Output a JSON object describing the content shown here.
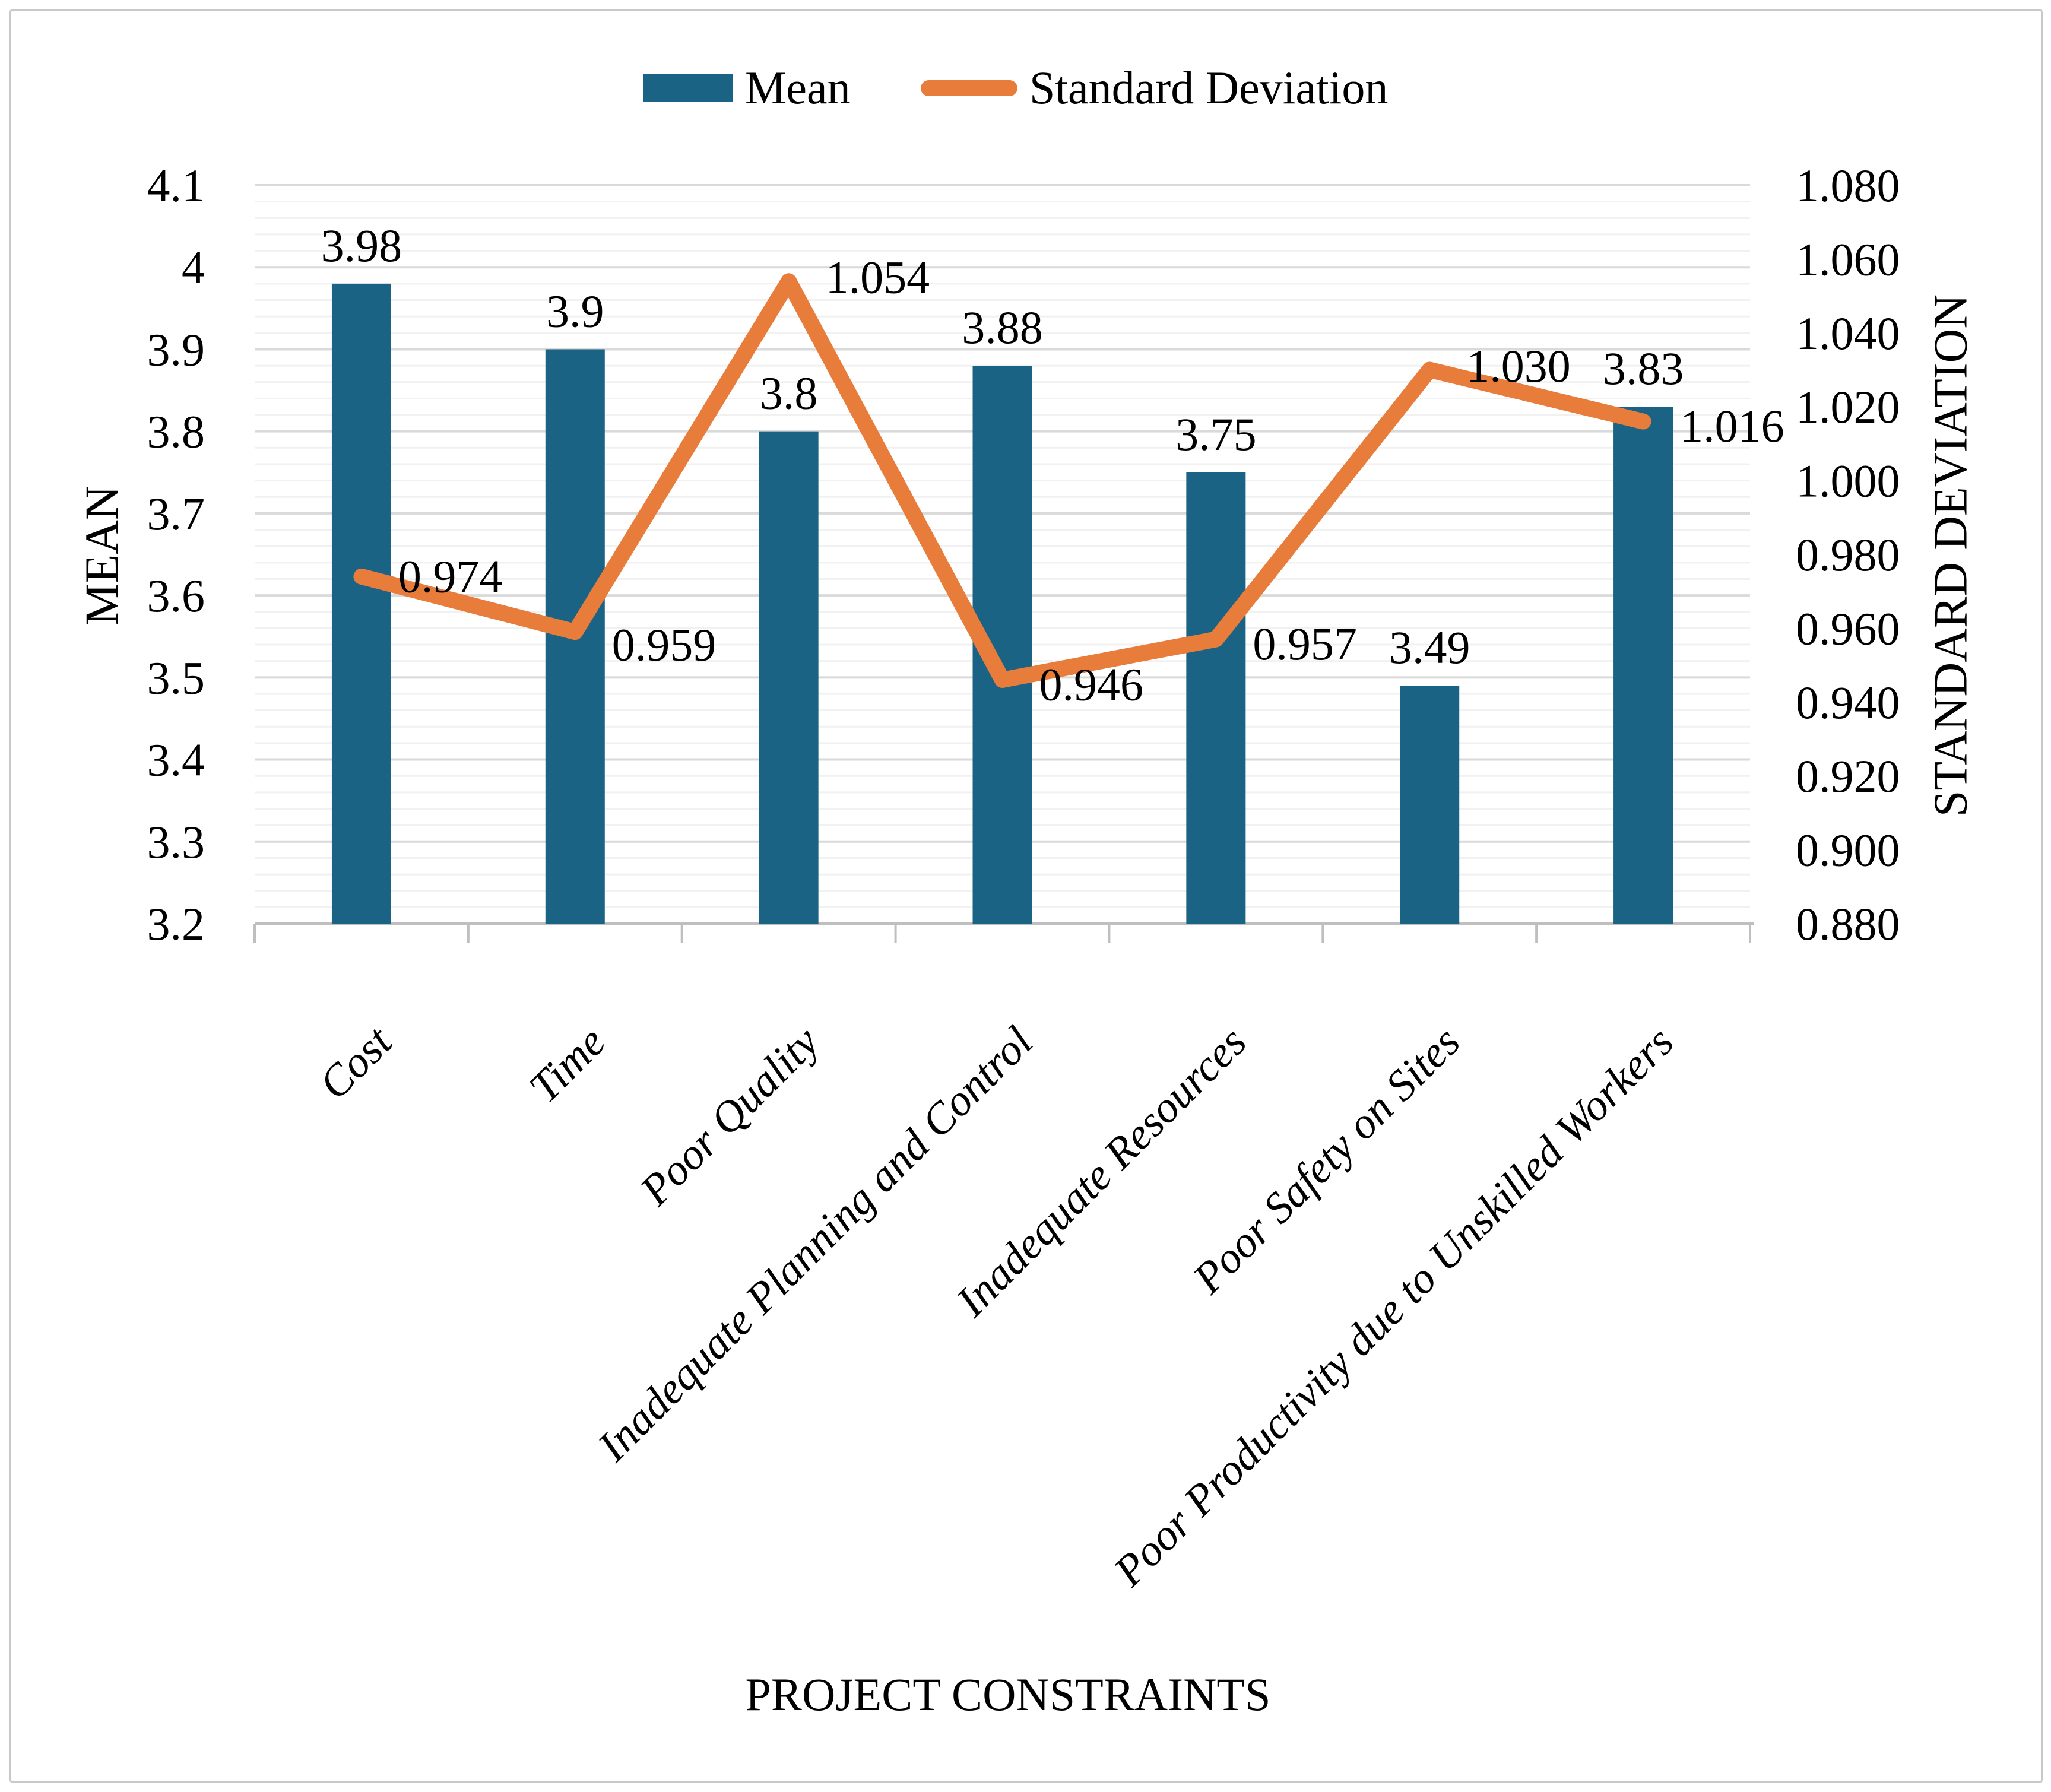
{
  "legend": {
    "mean_label": "Mean",
    "sd_label": "Standard Deviation"
  },
  "axes": {
    "left_title": "MEAN",
    "right_title": "STANDARD DEVIATION",
    "bottom_title": "PROJECT CONSTRAINTS"
  },
  "colors": {
    "bar": "#1B6384",
    "line": "#E87C3B",
    "grid_major": "#DADADA",
    "grid_minor": "#F1F1F1",
    "axis_line": "#BFBFBF",
    "text": "#000000",
    "frame_border": "#C9C9C9"
  },
  "chart_data": {
    "type": "combo",
    "title": "",
    "xlabel": "PROJECT CONSTRAINTS",
    "categories": [
      "Cost",
      "Time",
      "Poor Quality",
      "Inadequate Planning and Control",
      "Inadequate Resources",
      "Poor Safety on Sites",
      "Poor Productivity due to Unskilled Workers"
    ],
    "series": [
      {
        "name": "Mean",
        "type": "bar",
        "axis": "left",
        "color": "#1B6384",
        "values": [
          3.98,
          3.9,
          3.8,
          3.88,
          3.75,
          3.49,
          3.83
        ],
        "labels": [
          "3.98",
          "3.9",
          "3.8",
          "3.88",
          "3.75",
          "3.49",
          "3.83"
        ]
      },
      {
        "name": "Standard Deviation",
        "type": "line",
        "axis": "right",
        "color": "#E87C3B",
        "values": [
          0.974,
          0.959,
          1.054,
          0.946,
          0.957,
          1.03,
          1.016
        ],
        "labels": [
          "0.974",
          "0.959",
          "1.054",
          "0.946",
          "0.957",
          "1.030",
          "1.016"
        ]
      }
    ],
    "left_axis": {
      "title": "MEAN",
      "min": 3.2,
      "max": 4.1,
      "tick_step": 0.1,
      "ticks": [
        "4.1",
        "4",
        "3.9",
        "3.8",
        "3.7",
        "3.6",
        "3.5",
        "3.4",
        "3.3",
        "3.2"
      ]
    },
    "right_axis": {
      "title": "STANDARD DEVIATION",
      "min": 0.88,
      "max": 1.08,
      "tick_step": 0.02,
      "ticks": [
        "1.080",
        "1.060",
        "1.040",
        "1.020",
        "1.000",
        "0.980",
        "0.960",
        "0.940",
        "0.920",
        "0.900",
        "0.880"
      ]
    },
    "grid": {
      "major": true,
      "minor": true,
      "minor_step_left_axis": 0.02
    },
    "legend_position": "top"
  }
}
